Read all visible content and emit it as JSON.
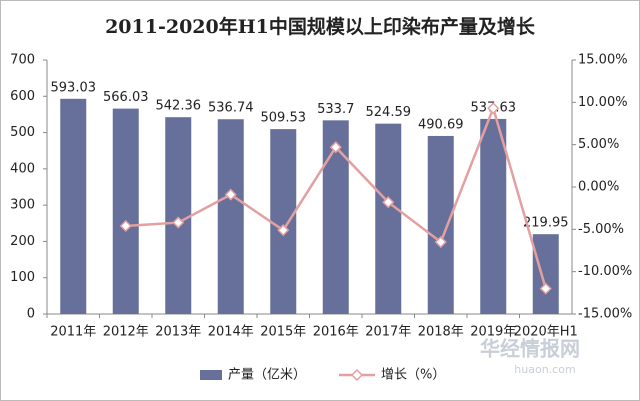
{
  "chart_data": {
    "type": "bar_line",
    "title": "2011-2020年H1中国规模以上印染布产量及增长",
    "categories": [
      "2011年",
      "2012年",
      "2013年",
      "2014年",
      "2015年",
      "2016年",
      "2017年",
      "2018年",
      "2019年",
      "2020年H1"
    ],
    "series": [
      {
        "name": "产量（亿米）",
        "type": "bar",
        "color": "#66709a",
        "values": [
          593.03,
          566.03,
          542.36,
          536.74,
          509.53,
          533.7,
          524.59,
          490.69,
          537.63,
          219.95
        ]
      },
      {
        "name": "增长（%）",
        "type": "line",
        "axis": "y2",
        "color": "#e4a0a0",
        "values": [
          null,
          -4.6,
          -4.2,
          -0.9,
          -5.1,
          4.7,
          -1.8,
          -6.5,
          9.3,
          -12.0
        ]
      }
    ],
    "ylim": [
      0,
      700
    ],
    "yticks": [
      0,
      100,
      200,
      300,
      400,
      500,
      600,
      700
    ],
    "y2lim": [
      -15,
      15
    ],
    "y2ticks": [
      {
        "value": -15,
        "label": "-15.00%"
      },
      {
        "value": -10,
        "label": "-10.00%"
      },
      {
        "value": -5,
        "label": "-5.00%"
      },
      {
        "value": 0,
        "label": "0.00%"
      },
      {
        "value": 5,
        "label": "5.00%"
      },
      {
        "value": 10,
        "label": "10.00%"
      },
      {
        "value": 15,
        "label": "15.00%"
      }
    ],
    "grid": false,
    "legend": "bottom",
    "watermark": [
      "华经情报网",
      "huaon.com"
    ]
  }
}
